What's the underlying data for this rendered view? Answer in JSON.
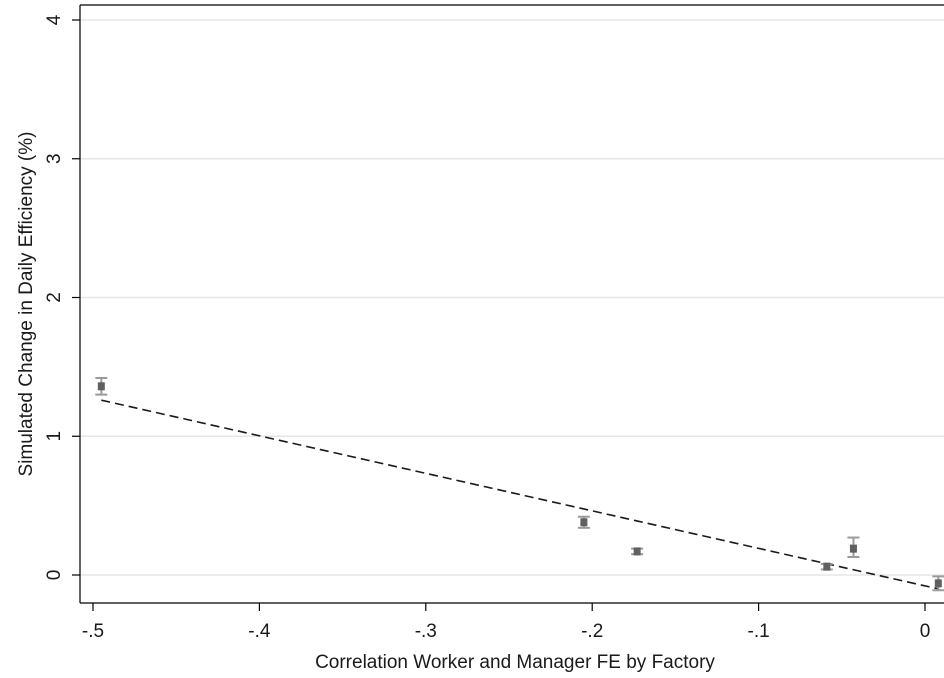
{
  "chart_data": {
    "type": "scatter",
    "title": "",
    "xlabel": "Correlation Worker and Manager FE by Factory",
    "ylabel": "Simulated Change in Daily Efficiency (%)",
    "xlim": [
      -0.52,
      0.02
    ],
    "ylim": [
      -0.2,
      4.1
    ],
    "xticks": [
      -0.5,
      -0.4,
      -0.3,
      -0.2,
      -0.1,
      0
    ],
    "xtick_labels": [
      "-.5",
      "-.4",
      "-.3",
      "-.2",
      "-.1",
      "0"
    ],
    "yticks": [
      0,
      1,
      2,
      3,
      4
    ],
    "ytick_labels": [
      "0",
      "1",
      "2",
      "3",
      "4"
    ],
    "grid": true,
    "legend": "none",
    "series": [
      {
        "type": "scatter-with-error-bars",
        "color": "#606060",
        "errorbar_color": "#9a9a9a",
        "points": [
          {
            "x": -0.495,
            "y": 1.36,
            "lo": 1.3,
            "hi": 1.42
          },
          {
            "x": -0.205,
            "y": 0.38,
            "lo": 0.34,
            "hi": 0.42
          },
          {
            "x": -0.173,
            "y": 0.17,
            "lo": 0.15,
            "hi": 0.19
          },
          {
            "x": -0.059,
            "y": 0.06,
            "lo": 0.04,
            "hi": 0.08
          },
          {
            "x": -0.043,
            "y": 0.19,
            "lo": 0.13,
            "hi": 0.27
          },
          {
            "x": 0.008,
            "y": -0.06,
            "lo": -0.11,
            "hi": -0.01
          }
        ]
      },
      {
        "type": "fit-line",
        "style": "dashed",
        "color": "#1a1a1a",
        "x": [
          -0.495,
          0.008
        ],
        "y": [
          1.26,
          -0.1
        ]
      }
    ]
  }
}
